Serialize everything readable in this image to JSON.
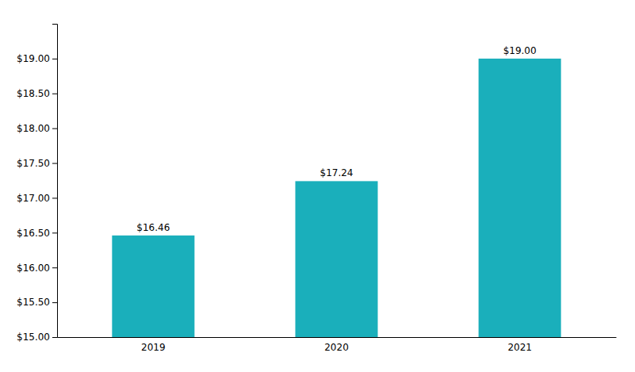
{
  "chart_data": {
    "type": "bar",
    "categories": [
      "2019",
      "2020",
      "2021"
    ],
    "values": [
      16.46,
      17.24,
      19.0
    ],
    "value_labels": [
      "$16.46",
      "$17.24",
      "$19.00"
    ],
    "data_labels": true,
    "color": "#1AAFBB",
    "ylim": [
      15.0,
      19.5
    ],
    "yticks": [
      {
        "value": 15.0,
        "label": "$15.00"
      },
      {
        "value": 15.5,
        "label": "$15.50"
      },
      {
        "value": 16.0,
        "label": "$16.00"
      },
      {
        "value": 16.5,
        "label": "$16.50"
      },
      {
        "value": 17.0,
        "label": "$17.00"
      },
      {
        "value": 17.5,
        "label": "$17.50"
      },
      {
        "value": 18.0,
        "label": "$18.00"
      },
      {
        "value": 18.5,
        "label": "$18.50"
      },
      {
        "value": 19.0,
        "label": "$19.00"
      }
    ],
    "grid": false
  }
}
